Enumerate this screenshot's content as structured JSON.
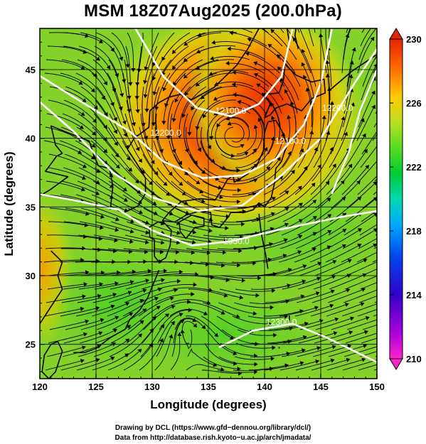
{
  "title": "MSM 18Z07Aug2025 (200.0hPa)",
  "axes": {
    "xlabel": "Longitude (degrees)",
    "ylabel": "Latitude  (degrees)",
    "xlim": [
      120,
      150
    ],
    "ylim": [
      22.5,
      48
    ],
    "xticks": [
      "120",
      "125",
      "130",
      "135",
      "140",
      "145",
      "150"
    ],
    "xtick_values": [
      120,
      125,
      130,
      135,
      140,
      145,
      150
    ],
    "yticks": [
      "25",
      "30",
      "35",
      "40",
      "45"
    ],
    "ytick_values": [
      25,
      30,
      35,
      40,
      45
    ],
    "grid": true
  },
  "colorbar": {
    "min": 210,
    "max": 230,
    "labels": [
      "230",
      "226",
      "222",
      "218",
      "214",
      "210"
    ],
    "label_values": [
      230,
      226,
      222,
      218,
      214,
      210
    ],
    "colors": [
      "#ff00aa",
      "#8800dd",
      "#2200cc",
      "#0044dd",
      "#00aaff",
      "#00ddaa",
      "#00cc33",
      "#44dd22",
      "#aadd33",
      "#ffcc00",
      "#ff6600",
      "#ee2200"
    ]
  },
  "contours": {
    "color": "#ffffff",
    "labels": [
      {
        "text": "12100.0",
        "lon": 137.0,
        "lat": 41.8
      },
      {
        "text": "12200.0",
        "lon": 131.2,
        "lat": 40.2
      },
      {
        "text": "12100.0",
        "lon": 142.3,
        "lat": 39.6
      },
      {
        "text": "1350.0",
        "lon": 137.5,
        "lat": 32.3
      },
      {
        "text": "12300.0",
        "lon": 141.5,
        "lat": 26.4
      },
      {
        "text": "12200.0",
        "lon": 146.5,
        "lat": 42.0
      }
    ]
  },
  "field": {
    "description_values": "temperature-like scalar field in colorbar units",
    "warm_center": {
      "lon": 139.5,
      "lat": 41.0,
      "value": 229
    },
    "background_value": 222.5,
    "cool_values": [
      {
        "lon": 133.0,
        "lat": 27.0,
        "value": 222.0
      },
      {
        "lon": 147.0,
        "lat": 25.0,
        "value": 222.5
      }
    ]
  },
  "credits": {
    "line1": "Drawing by DCL (https://www.gfd−dennou.org/library/dcl/)",
    "line2": "Data from http://database.rish.kyoto−u.ac.jp/arch/jmadata/"
  }
}
